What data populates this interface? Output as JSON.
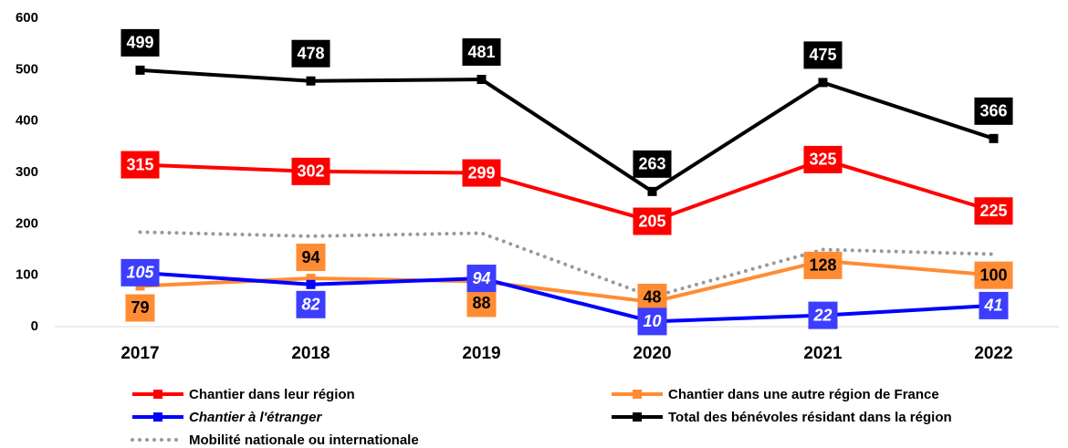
{
  "chart_data": {
    "type": "line",
    "categories": [
      "2017",
      "2018",
      "2019",
      "2020",
      "2021",
      "2022"
    ],
    "ylim": [
      0,
      600
    ],
    "yticks": [
      0,
      100,
      200,
      300,
      400,
      500,
      600
    ],
    "grid": false,
    "series": [
      {
        "name": "Chantier dans leur région",
        "color": "#ff0000",
        "label_text_color": "#ffffff",
        "values": [
          315,
          302,
          299,
          205,
          325,
          225
        ]
      },
      {
        "name": "Chantier dans une autre région de France",
        "color": "#ff8c33",
        "label_text_color": "#000000",
        "values": [
          79,
          94,
          88,
          48,
          128,
          100
        ]
      },
      {
        "name": "Chantier à l'étranger",
        "color": "#0000ff",
        "label_color": "#3d3dff",
        "label_text_color": "#ffffff",
        "font_style": "italic",
        "values": [
          105,
          82,
          94,
          10,
          22,
          41
        ]
      },
      {
        "name": "Total des bénévoles résidant dans la région",
        "color": "#000000",
        "label_text_color": "#ffffff",
        "values": [
          499,
          478,
          481,
          263,
          475,
          366
        ]
      },
      {
        "name": "Mobilité nationale ou internationale",
        "color": "#999999",
        "line_style": "dotted",
        "markers": false,
        "data_labels": false,
        "values": [
          184,
          176,
          182,
          58,
          150,
          141
        ]
      }
    ]
  }
}
